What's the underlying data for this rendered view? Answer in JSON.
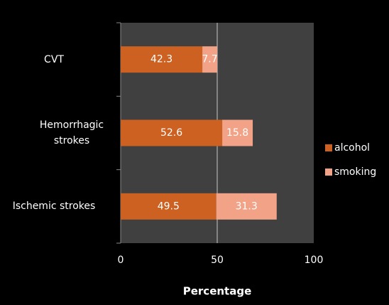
{
  "chart_data": {
    "type": "stacked_barh",
    "categories": [
      "CVT",
      "Hemorrhagic strokes",
      "Ischemic strokes"
    ],
    "series": [
      {
        "name": "alcohol",
        "color": "#cc6122",
        "values": [
          42.3,
          52.6,
          49.5
        ]
      },
      {
        "name": "smoking",
        "color": "#f2a287",
        "values": [
          7.7,
          15.8,
          31.3
        ]
      }
    ],
    "xlabel": "Percentage",
    "xlim": [
      0,
      100
    ],
    "xticks": [
      0,
      50,
      100
    ],
    "grid": true,
    "legend": "right"
  }
}
